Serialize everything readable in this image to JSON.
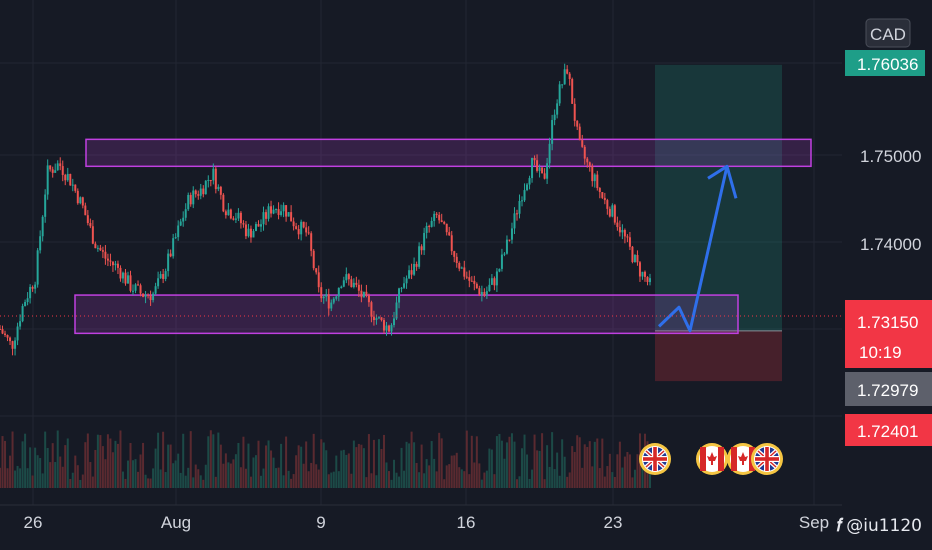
{
  "chart_data": {
    "type": "candlestick",
    "currency": "CAD",
    "y_ticks": [
      "1.75000",
      "1.74000"
    ],
    "x_ticks": [
      "26",
      "Aug",
      "9",
      "16",
      "23",
      "Sep"
    ],
    "price_labels": {
      "take_profit": {
        "text": "1.76036",
        "value": 1.76036,
        "color": "#1e9e88"
      },
      "current": {
        "text": "1.73150",
        "value": 1.7315,
        "color": "#f23645"
      },
      "countdown": "10:19",
      "entry": {
        "text": "1.72979",
        "value": 1.72979,
        "color": "#5d606b"
      },
      "stop_loss": {
        "text": "1.72401",
        "value": 1.72401,
        "color": "#f23645"
      }
    },
    "zones": [
      {
        "name": "resistance",
        "low": 1.7487,
        "high": 1.7518,
        "color": "#c040e0"
      },
      {
        "name": "support",
        "low": 1.7295,
        "high": 1.7339,
        "color": "#c040e0"
      }
    ],
    "position": {
      "entry": 1.72979,
      "target": 1.76036,
      "stop": 1.72401
    },
    "forecast_path": [
      1.7303,
      1.7325,
      1.7298,
      1.7487
    ],
    "price_path": [
      1.73,
      1.728,
      1.733,
      1.736,
      1.748,
      1.749,
      1.747,
      1.744,
      1.74,
      1.738,
      1.737,
      1.735,
      1.734,
      1.734,
      1.737,
      1.741,
      1.745,
      1.746,
      1.748,
      1.744,
      1.743,
      1.741,
      1.742,
      1.744,
      1.744,
      1.742,
      1.741,
      1.734,
      1.733,
      1.736,
      1.735,
      1.733,
      1.731,
      1.73,
      1.735,
      1.737,
      1.741,
      1.743,
      1.74,
      1.737,
      1.735,
      1.734,
      1.736,
      1.74,
      1.745,
      1.749,
      1.747,
      1.756,
      1.76,
      1.751,
      1.748,
      1.745,
      1.743,
      1.74,
      1.737,
      1.735
    ],
    "event_flags": [
      "gb-flag",
      "ca-flag",
      "ca-flag",
      "gb-flag"
    ],
    "colors": {
      "up": "#26a69a",
      "down": "#ef5350",
      "background": "#161a25"
    }
  },
  "watermark": {
    "logo": "tv-logo-icon",
    "handle": "@iu1120"
  }
}
